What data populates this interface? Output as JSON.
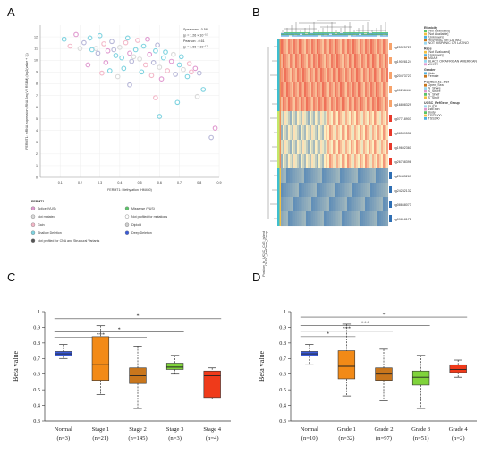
{
  "panels": {
    "a": "A",
    "b": "B",
    "c": "C",
    "d": "D"
  },
  "panel_a": {
    "stats": [
      "Spearman: -0.58",
      "(p = 1.26 × 10⁻¹⁵)",
      "Pearson: -0.61",
      "(p = 1.66 × 10⁻¹⁷)"
    ],
    "ylabel": "FERMT1: mRNA expression (RNA Seq V2 RSEM) (log2(value + 1))",
    "xlabel": "FERMT1: Methylation (HM450)",
    "legend_title": "FERMT1",
    "legend": [
      {
        "label": "Splice (VUS)",
        "color": "#e09ad0"
      },
      {
        "label": "Missense (VUS)",
        "color": "#5cc46a"
      },
      {
        "label": "Not mutated",
        "color": "#d9d9d9"
      },
      {
        "label": "Not profiled for mutations",
        "color": "#ffffff"
      },
      {
        "label": "Gain",
        "color": "#f3b7c8"
      },
      {
        "label": "Diploid",
        "color": "#cfcfcf"
      },
      {
        "label": "Shallow Deletion",
        "color": "#7fd3e0"
      },
      {
        "label": "Deep Deletion",
        "color": "#3b5bd6"
      },
      {
        "label": "Not profiled for CNA and Structural Variants",
        "color": "#555555"
      }
    ],
    "chart_data": {
      "type": "scatter",
      "xlabel": "FERMT1: Methylation (HM450)",
      "ylabel": "FERMT1: mRNA expression (RNA Seq V2 RSEM) (log2(value + 1))",
      "xlim": [
        0.0,
        0.9
      ],
      "ylim": [
        0,
        13
      ],
      "xticks": [
        "0.1",
        "0.2",
        "0.3",
        "0.4",
        "0.5",
        "0.6",
        "0.7",
        "0.8",
        "0.9"
      ],
      "yticks": [
        "0",
        "1",
        "2",
        "3",
        "4",
        "5",
        "6",
        "7",
        "8",
        "9",
        "10",
        "11",
        "12"
      ],
      "points": [
        [
          0.12,
          11.8
        ],
        [
          0.15,
          11.2
        ],
        [
          0.18,
          12.2
        ],
        [
          0.22,
          11.5
        ],
        [
          0.25,
          11.9
        ],
        [
          0.28,
          11.0
        ],
        [
          0.3,
          12.1
        ],
        [
          0.32,
          11.4
        ],
        [
          0.34,
          10.8
        ],
        [
          0.36,
          11.6
        ],
        [
          0.38,
          10.4
        ],
        [
          0.4,
          11.1
        ],
        [
          0.41,
          10.2
        ],
        [
          0.43,
          11.5
        ],
        [
          0.45,
          10.6
        ],
        [
          0.46,
          9.9
        ],
        [
          0.48,
          10.9
        ],
        [
          0.5,
          10.1
        ],
        [
          0.52,
          11.2
        ],
        [
          0.53,
          9.6
        ],
        [
          0.55,
          10.5
        ],
        [
          0.57,
          9.8
        ],
        [
          0.58,
          10.8
        ],
        [
          0.6,
          9.4
        ],
        [
          0.62,
          10.2
        ],
        [
          0.64,
          9.1
        ],
        [
          0.66,
          9.9
        ],
        [
          0.68,
          8.8
        ],
        [
          0.7,
          9.6
        ],
        [
          0.72,
          9.2
        ],
        [
          0.74,
          8.6
        ],
        [
          0.76,
          9.0
        ],
        [
          0.33,
          9.8
        ],
        [
          0.37,
          10.9
        ],
        [
          0.42,
          9.3
        ],
        [
          0.47,
          10.3
        ],
        [
          0.51,
          9.0
        ],
        [
          0.56,
          8.7
        ],
        [
          0.61,
          8.4
        ],
        [
          0.29,
          10.6
        ],
        [
          0.26,
          10.9
        ],
        [
          0.2,
          11.0
        ],
        [
          0.44,
          11.9
        ],
        [
          0.49,
          11.7
        ],
        [
          0.54,
          11.8
        ],
        [
          0.59,
          11.3
        ],
        [
          0.63,
          10.7
        ],
        [
          0.67,
          10.5
        ],
        [
          0.71,
          10.3
        ],
        [
          0.75,
          9.7
        ],
        [
          0.78,
          9.3
        ],
        [
          0.8,
          8.9
        ],
        [
          0.82,
          7.5
        ],
        [
          0.79,
          6.9
        ],
        [
          0.69,
          6.4
        ],
        [
          0.58,
          6.8
        ],
        [
          0.88,
          4.2
        ],
        [
          0.86,
          3.4
        ],
        [
          0.6,
          5.2
        ],
        [
          0.39,
          8.6
        ],
        [
          0.35,
          9.1
        ],
        [
          0.31,
          8.9
        ],
        [
          0.24,
          9.6
        ],
        [
          0.45,
          7.9
        ]
      ]
    }
  },
  "panel_b": {
    "row_labels": [
      "cg25325723",
      "cg19028124",
      "cg20473723",
      "cg00268444",
      "cg16898329",
      "cg07718903",
      "cg08539538",
      "cg19692360",
      "cg26758396",
      "cg23483267",
      "cg24242132",
      "cg08668073",
      "cg09818171"
    ],
    "legend_blocks": [
      {
        "title": "Ethnicity",
        "items": [
          "[Not Evaluated]",
          "[Not Available]",
          "[Unknown]",
          "HISPANIC OR LATINO",
          "NOT HISPANIC OR LATINO"
        ]
      },
      {
        "title": "Race",
        "items": [
          "[Not Evaluated]",
          "[Unknown]",
          "ASIAN",
          "BLACK OR AFRICAN AMERICAN",
          "WHITE"
        ]
      },
      {
        "title": "Gender",
        "items": [
          "Male",
          "Female"
        ]
      },
      {
        "title": "Position_to_CGI",
        "items": [
          "Open_Sea",
          "N_Shore",
          "S_Shore",
          "N_Shelf",
          "S_Shelf"
        ]
      },
      {
        "title": "UCSC_RefGene_Group",
        "items": [
          "5'UTR",
          "1stExon",
          "Body",
          "TSS1500",
          "TSS200"
        ]
      }
    ],
    "side_labels": [
      "Position_to_UCSC_CpG_island",
      "UCSC_RefGene_Group"
    ],
    "colors": {
      "high": "#e8392b",
      "mid": "#fff3c4",
      "low": "#2f6fb4"
    }
  },
  "panel_c": {
    "chart_data": {
      "type": "box",
      "ylabel": "Beta value",
      "ylim": [
        0.3,
        1.0
      ],
      "yticks": [
        "0.3",
        "0.4",
        "0.5",
        "0.6",
        "0.7",
        "0.8",
        "0.9",
        "1"
      ],
      "categories": [
        "Normal",
        "Stage 1",
        "Stage 2",
        "Stage 3",
        "Stage 4"
      ],
      "counts": [
        "(n=3)",
        "(n=21)",
        "(n=145)",
        "(n=3)",
        "(n=4)"
      ],
      "colors": [
        "#3b5bdb",
        "#f28a17",
        "#c9761c",
        "#7fd33b",
        "#ef3a1a"
      ],
      "boxes": [
        {
          "min": 0.7,
          "q1": 0.715,
          "median": 0.73,
          "q3": 0.745,
          "max": 0.79
        },
        {
          "min": 0.47,
          "q1": 0.56,
          "median": 0.66,
          "q3": 0.84,
          "max": 0.91
        },
        {
          "min": 0.38,
          "q1": 0.54,
          "median": 0.59,
          "q3": 0.64,
          "max": 0.78
        },
        {
          "min": 0.6,
          "q1": 0.63,
          "median": 0.645,
          "q3": 0.67,
          "max": 0.72
        },
        {
          "min": 0.44,
          "q1": 0.45,
          "median": 0.59,
          "q3": 0.62,
          "max": 0.64
        }
      ],
      "significance": [
        {
          "from": 0,
          "to": 4,
          "label": "*",
          "y": 0.955
        },
        {
          "from": 0,
          "to": 3,
          "label": "*",
          "y": 0.87
        },
        {
          "from": 0,
          "to": 2,
          "label": "***",
          "y": 0.835
        }
      ]
    }
  },
  "panel_d": {
    "chart_data": {
      "type": "box",
      "ylabel": "Beta value",
      "ylim": [
        0.3,
        1.0
      ],
      "yticks": [
        "0.3",
        "0.4",
        "0.5",
        "0.6",
        "0.7",
        "0.8",
        "0.9",
        "1"
      ],
      "categories": [
        "Normal",
        "Grade 1",
        "Grade 2",
        "Grade 3",
        "Grade 4"
      ],
      "counts": [
        "(n=10)",
        "(n=32)",
        "(n=97)",
        "(n=51)",
        "(n=2)"
      ],
      "colors": [
        "#3b5bdb",
        "#f28a17",
        "#c9761c",
        "#7fd33b",
        "#ef3a1a"
      ],
      "boxes": [
        {
          "min": 0.66,
          "q1": 0.715,
          "median": 0.73,
          "q3": 0.745,
          "max": 0.79
        },
        {
          "min": 0.46,
          "q1": 0.57,
          "median": 0.65,
          "q3": 0.75,
          "max": 0.92
        },
        {
          "min": 0.43,
          "q1": 0.56,
          "median": 0.6,
          "q3": 0.64,
          "max": 0.76
        },
        {
          "min": 0.38,
          "q1": 0.53,
          "median": 0.58,
          "q3": 0.62,
          "max": 0.72
        },
        {
          "min": 0.58,
          "q1": 0.61,
          "median": 0.63,
          "q3": 0.66,
          "max": 0.69
        }
      ],
      "significance": [
        {
          "from": 0,
          "to": 4,
          "label": "*",
          "y": 0.965
        },
        {
          "from": 0,
          "to": 3,
          "label": "***",
          "y": 0.91
        },
        {
          "from": 0,
          "to": 2,
          "label": "***",
          "y": 0.875
        },
        {
          "from": 0,
          "to": 1,
          "label": "*",
          "y": 0.84
        }
      ]
    }
  }
}
